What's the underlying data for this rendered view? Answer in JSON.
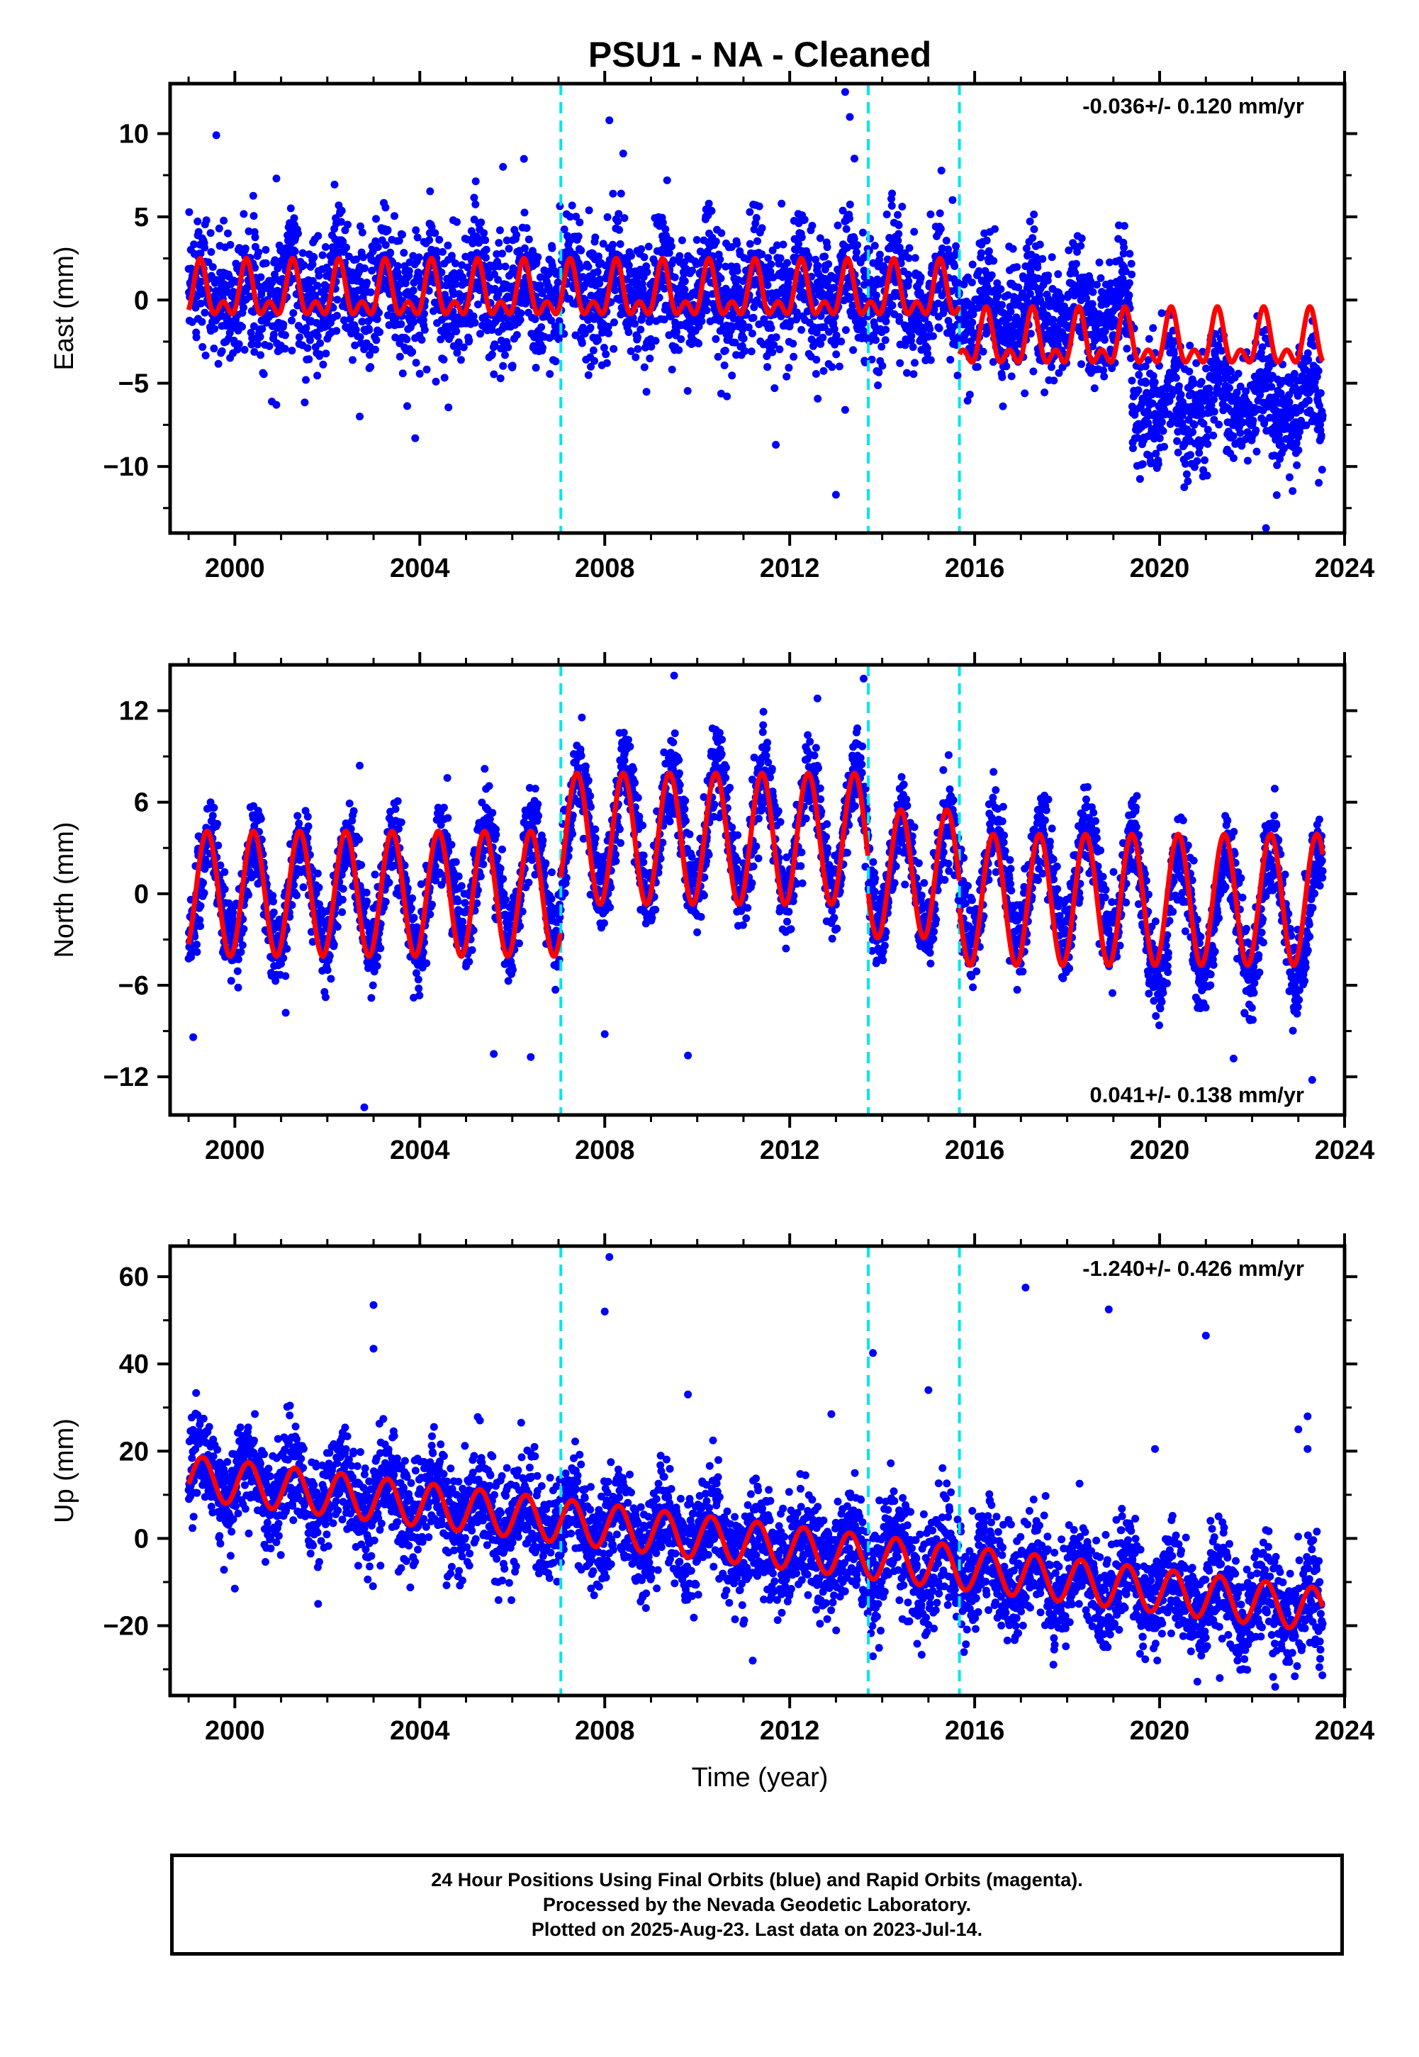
{
  "title": "PSU1  - NA - Cleaned",
  "xlabel": "Time (year)",
  "footer": {
    "line1": "24 Hour Positions Using Final Orbits (blue) and Rapid Orbits (magenta).",
    "line2": "Processed by the Nevada Geodetic Laboratory.",
    "line3": "Plotted on 2025-Aug-23. Last data on 2023-Jul-14."
  },
  "colors": {
    "data": "#0000ff",
    "model": "#ff0000",
    "events": "#00e5ee",
    "frame": "#000000"
  },
  "chart_data": [
    {
      "type": "scatter",
      "panel": "East",
      "ylabel": "East (mm)",
      "rate_label": "-0.036+/- 0.120 mm/yr",
      "rate_position": "top-right",
      "xlim": [
        1998.6,
        2024.0
      ],
      "ylim": [
        -14,
        13
      ],
      "xticks": [
        2000,
        2004,
        2008,
        2012,
        2016,
        2020,
        2024
      ],
      "xtick_labels": [
        "2000",
        "2004",
        "2008",
        "2012",
        "2016",
        "2020",
        "2024"
      ],
      "yticks": [
        10,
        5,
        0,
        -5,
        -10
      ],
      "ytick_labels": [
        "10",
        "5",
        "0",
        "−5",
        "−10"
      ],
      "events": [
        2007.05,
        2013.7,
        2015.67
      ],
      "data_range": [
        1999.0,
        2023.53
      ],
      "model_segments": [
        {
          "from": 1999.0,
          "to": 2015.67,
          "offset": 0.3,
          "amp": 1.3,
          "phase": 1999.25,
          "semi_amp": 0.9
        },
        {
          "from": 2015.67,
          "to": 2023.53,
          "offset": -2.6,
          "amp": 1.3,
          "phase": 1999.25,
          "semi_amp": 0.9
        }
      ],
      "data_segments": [
        {
          "from": 1999.0,
          "to": 2015.67,
          "mean": 0.5,
          "spread": 1.9
        },
        {
          "from": 2015.67,
          "to": 2019.4,
          "mean": -0.8,
          "spread": 1.7
        },
        {
          "from": 2019.4,
          "to": 2023.53,
          "mean": -6.2,
          "spread": 1.6
        }
      ],
      "outliers": [
        [
          1999.6,
          9.9
        ],
        [
          2000.9,
          7.3
        ],
        [
          2005.8,
          8.0
        ],
        [
          2008.1,
          10.8
        ],
        [
          2008.4,
          8.8
        ],
        [
          2013.2,
          12.5
        ],
        [
          2013.3,
          11.0
        ],
        [
          2013.4,
          8.5
        ],
        [
          2013.0,
          -11.7
        ],
        [
          2013.2,
          -6.6
        ],
        [
          2003.9,
          -8.3
        ],
        [
          2011.7,
          -8.7
        ],
        [
          2022.3,
          -13.7
        ],
        [
          2000.8,
          -6.1
        ],
        [
          2002.7,
          -7.0
        ]
      ]
    },
    {
      "type": "scatter",
      "panel": "North",
      "ylabel": "North (mm)",
      "rate_label": "0.041+/- 0.138 mm/yr",
      "rate_position": "bottom-right",
      "xlim": [
        1998.6,
        2024.0
      ],
      "ylim": [
        -14.5,
        15
      ],
      "xticks": [
        2000,
        2004,
        2008,
        2012,
        2016,
        2020,
        2024
      ],
      "xtick_labels": [
        "2000",
        "2004",
        "2008",
        "2012",
        "2016",
        "2020",
        "2024"
      ],
      "yticks": [
        12,
        6,
        0,
        -6,
        -12
      ],
      "ytick_labels": [
        "12",
        "6",
        "0",
        "−6",
        "−12"
      ],
      "events": [
        2007.05,
        2013.7,
        2015.67
      ],
      "data_range": [
        1999.0,
        2023.53
      ],
      "model_segments": [
        {
          "from": 1999.0,
          "to": 2007.05,
          "offset": 0.0,
          "amp": 4.1,
          "phase": 1999.4,
          "semi_amp": 0
        },
        {
          "from": 2007.05,
          "to": 2013.7,
          "offset": 3.6,
          "amp": 4.3,
          "phase": 1999.4,
          "semi_amp": 0
        },
        {
          "from": 2013.7,
          "to": 2015.67,
          "offset": 1.3,
          "amp": 4.2,
          "phase": 1999.4,
          "semi_amp": 0
        },
        {
          "from": 2015.67,
          "to": 2023.53,
          "offset": -0.4,
          "amp": 4.3,
          "phase": 1999.4,
          "semi_amp": 0
        }
      ],
      "data_segments": [
        {
          "from": 1999.0,
          "to": 2004.5,
          "mean": 0.0,
          "spread": 1.4,
          "amp": 4.5
        },
        {
          "from": 2004.5,
          "to": 2007.05,
          "mean": 0.8,
          "spread": 1.4,
          "amp": 5.0
        },
        {
          "from": 2007.05,
          "to": 2013.7,
          "mean": 4.0,
          "spread": 1.4,
          "amp": 5.6
        },
        {
          "from": 2013.7,
          "to": 2015.67,
          "mean": 1.3,
          "spread": 1.4,
          "amp": 4.8
        },
        {
          "from": 2015.67,
          "to": 2019.5,
          "mean": 0.5,
          "spread": 1.4,
          "amp": 5.0
        },
        {
          "from": 2019.5,
          "to": 2023.53,
          "mean": -1.5,
          "spread": 1.5,
          "amp": 5.6
        }
      ],
      "outliers": [
        [
          2009.5,
          14.3
        ],
        [
          2013.6,
          14.1
        ],
        [
          2012.6,
          12.8
        ],
        [
          2002.8,
          -14.0
        ],
        [
          2009.8,
          -10.6
        ],
        [
          2005.6,
          -10.5
        ],
        [
          2006.4,
          -10.7
        ],
        [
          2001.1,
          -7.8
        ],
        [
          2021.6,
          -10.8
        ],
        [
          2023.3,
          -12.2
        ],
        [
          1999.1,
          -9.4
        ],
        [
          2008.0,
          -9.2
        ],
        [
          2002.7,
          8.4
        ]
      ]
    },
    {
      "type": "scatter",
      "panel": "Up",
      "ylabel": "Up (mm)",
      "rate_label": "-1.240+/- 0.426 mm/yr",
      "rate_position": "top-right",
      "xlim": [
        1998.6,
        2024.0
      ],
      "ylim": [
        -36,
        67
      ],
      "xticks": [
        2000,
        2004,
        2008,
        2012,
        2016,
        2020,
        2024
      ],
      "xtick_labels": [
        "2000",
        "2004",
        "2008",
        "2012",
        "2016",
        "2020",
        "2024"
      ],
      "yticks": [
        60,
        40,
        20,
        0,
        -20
      ],
      "ytick_labels": [
        "60",
        "40",
        "20",
        "0",
        "−20"
      ],
      "events": [
        2007.05,
        2013.7,
        2015.67
      ],
      "data_range": [
        1999.0,
        2023.53
      ],
      "model_linear": {
        "intercept_at_1999": 14.0,
        "rate": -1.24,
        "amp": 5.0,
        "phase": 1999.3
      },
      "data_linear": {
        "mean_at_1999": 14.0,
        "rate": -1.24,
        "spread": 6.0,
        "amp": 5.0
      },
      "outliers": [
        [
          2003.0,
          53.5
        ],
        [
          2003.0,
          43.5
        ],
        [
          2008.1,
          64.5
        ],
        [
          2008.0,
          52.0
        ],
        [
          2013.8,
          42.5
        ],
        [
          2017.1,
          57.5
        ],
        [
          2018.9,
          52.5
        ],
        [
          2021.0,
          46.5
        ],
        [
          2023.2,
          28.0
        ],
        [
          2023.0,
          25.0
        ],
        [
          2023.2,
          20.5
        ],
        [
          2019.9,
          20.5
        ],
        [
          2015.0,
          34.0
        ],
        [
          2009.8,
          33.0
        ],
        [
          2011.2,
          -28.0
        ],
        [
          2013.8,
          -27.0
        ],
        [
          2021.3,
          -32.0
        ],
        [
          2022.5,
          -34.0
        ],
        [
          2001.8,
          -15.0
        ],
        [
          2000.0,
          -11.5
        ],
        [
          2012.9,
          28.5
        ]
      ]
    }
  ]
}
